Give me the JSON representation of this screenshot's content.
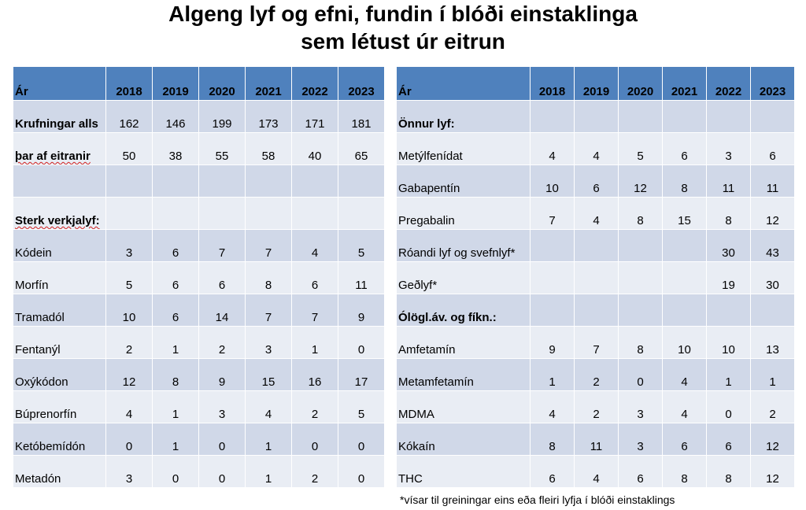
{
  "title": {
    "line1": "Algeng lyf og efni, fundin í blóði einstaklinga",
    "line2": "sem létust úr eitrun"
  },
  "left_table": {
    "header_label": "Ár",
    "years": [
      "2018",
      "2019",
      "2020",
      "2021",
      "2022",
      "2023"
    ],
    "rows": [
      {
        "label": "Krufningar alls",
        "values": [
          "162",
          "146",
          "199",
          "173",
          "171",
          "181"
        ]
      },
      {
        "label": "þar af eitranir",
        "values": [
          "50",
          "38",
          "55",
          "58",
          "40",
          "65"
        ]
      },
      {
        "label": "",
        "values": [
          "",
          "",
          "",
          "",
          "",
          ""
        ]
      },
      {
        "label": "Sterk verkjalyf:",
        "values": [
          "",
          "",
          "",
          "",
          "",
          ""
        ]
      },
      {
        "label": "Kódein",
        "values": [
          "3",
          "6",
          "7",
          "7",
          "4",
          "5"
        ]
      },
      {
        "label": "Morfín",
        "values": [
          "5",
          "6",
          "6",
          "8",
          "6",
          "11"
        ]
      },
      {
        "label": "Tramadól",
        "values": [
          "10",
          "6",
          "14",
          "7",
          "7",
          "9"
        ]
      },
      {
        "label": "Fentanýl",
        "values": [
          "2",
          "1",
          "2",
          "3",
          "1",
          "0"
        ]
      },
      {
        "label": "Oxýkódon",
        "values": [
          "12",
          "8",
          "9",
          "15",
          "16",
          "17"
        ]
      },
      {
        "label": "Búprenorfín",
        "values": [
          "4",
          "1",
          "3",
          "4",
          "2",
          "5"
        ]
      },
      {
        "label": "Ketóbemídón",
        "values": [
          "0",
          "1",
          "0",
          "1",
          "0",
          "0"
        ]
      },
      {
        "label": "Metadón",
        "values": [
          "3",
          "0",
          "0",
          "1",
          "2",
          "0"
        ]
      }
    ]
  },
  "right_table": {
    "header_label": "Ár",
    "years": [
      "2018",
      "2019",
      "2020",
      "2021",
      "2022",
      "2023"
    ],
    "rows": [
      {
        "label": "Önnur lyf:",
        "values": [
          "",
          "",
          "",
          "",
          "",
          ""
        ]
      },
      {
        "label": "Metýlfenídat",
        "values": [
          "4",
          "4",
          "5",
          "6",
          "3",
          "6"
        ]
      },
      {
        "label": "Gabapentín",
        "values": [
          "10",
          "6",
          "12",
          "8",
          "11",
          "11"
        ]
      },
      {
        "label": "Pregabalin",
        "values": [
          "7",
          "4",
          "8",
          "15",
          "8",
          "12"
        ]
      },
      {
        "label": "Róandi lyf og svefnlyf*",
        "values": [
          "",
          "",
          "",
          "",
          "30",
          "43"
        ]
      },
      {
        "label": "Geðlyf*",
        "values": [
          "",
          "",
          "",
          "",
          "19",
          "30"
        ]
      },
      {
        "label": "Ólögl.áv. og fíkn.:",
        "values": [
          "",
          "",
          "",
          "",
          "",
          ""
        ]
      },
      {
        "label": "Amfetamín",
        "values": [
          "9",
          "7",
          "8",
          "10",
          "10",
          "13"
        ]
      },
      {
        "label": "Metamfetamín",
        "values": [
          "1",
          "2",
          "0",
          "4",
          "1",
          "1"
        ]
      },
      {
        "label": "MDMA",
        "values": [
          "4",
          "2",
          "3",
          "4",
          "0",
          "2"
        ]
      },
      {
        "label": "Kókaín",
        "values": [
          "8",
          "11",
          "3",
          "6",
          "6",
          "12"
        ]
      },
      {
        "label": "THC",
        "values": [
          "6",
          "4",
          "6",
          "8",
          "8",
          "12"
        ]
      }
    ]
  },
  "footnote": "*vísar til greiningar eins eða fleiri lyfja í blóði einstaklings",
  "colors": {
    "header": "#4f81bd",
    "row_dark": "#d0d8e8",
    "row_light": "#e9edf4"
  }
}
